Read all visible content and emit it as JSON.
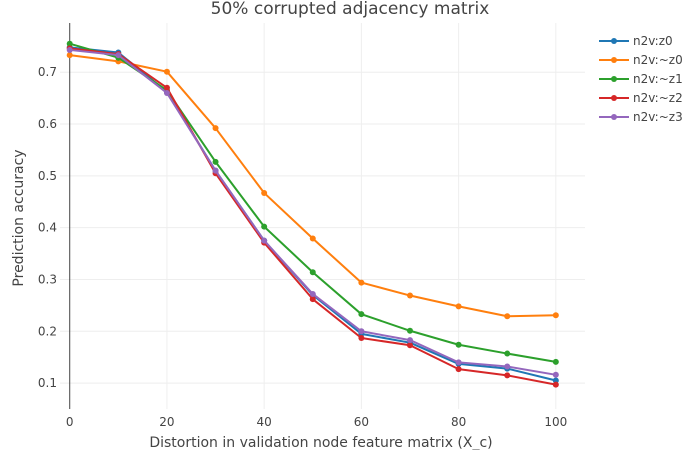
{
  "chart_data": {
    "type": "line",
    "title": "50% corrupted adjacency matrix",
    "xlabel": "Distortion in validation node feature matrix (X_c)",
    "ylabel": "Prediction accuracy",
    "x": [
      0,
      10,
      20,
      30,
      40,
      50,
      60,
      70,
      80,
      90,
      100
    ],
    "xlim": [
      -2,
      106
    ],
    "ylim": [
      0.05,
      0.795
    ],
    "xticks": [
      0,
      20,
      40,
      60,
      80,
      100
    ],
    "yticks": [
      0.1,
      0.2,
      0.3,
      0.4,
      0.5,
      0.6,
      0.7
    ],
    "xtick_labels": [
      "0",
      "20",
      "40",
      "60",
      "80",
      "100"
    ],
    "ytick_labels": [
      "0.1",
      "0.2",
      "0.3",
      "0.4",
      "0.5",
      "0.6",
      "0.7"
    ],
    "grid": true,
    "legend_position": "top-right",
    "series": [
      {
        "name": "n2v:z0",
        "color": "#1f77b4",
        "values": [
          0.748,
          0.738,
          0.662,
          0.51,
          0.375,
          0.27,
          0.195,
          0.178,
          0.137,
          0.128,
          0.105
        ]
      },
      {
        "name": "n2v:~z0",
        "color": "#ff7f0e",
        "values": [
          0.733,
          0.721,
          0.701,
          0.592,
          0.467,
          0.379,
          0.294,
          0.269,
          0.248,
          0.229,
          0.231
        ]
      },
      {
        "name": "n2v:~z1",
        "color": "#2ca02c",
        "values": [
          0.755,
          0.728,
          0.665,
          0.527,
          0.402,
          0.314,
          0.233,
          0.201,
          0.174,
          0.157,
          0.141
        ]
      },
      {
        "name": "n2v:~z2",
        "color": "#d62728",
        "values": [
          0.746,
          0.735,
          0.67,
          0.505,
          0.371,
          0.262,
          0.187,
          0.173,
          0.127,
          0.115,
          0.097
        ]
      },
      {
        "name": "n2v:~z3",
        "color": "#9467bd",
        "values": [
          0.743,
          0.733,
          0.66,
          0.51,
          0.375,
          0.272,
          0.2,
          0.183,
          0.14,
          0.132,
          0.116
        ]
      }
    ]
  }
}
